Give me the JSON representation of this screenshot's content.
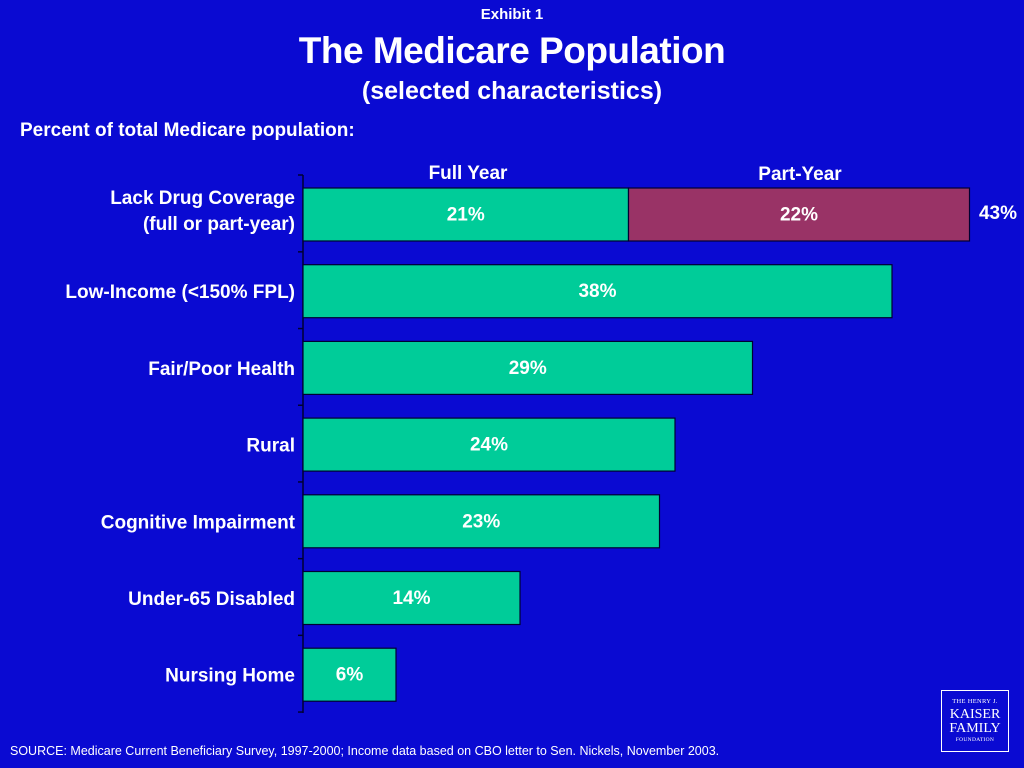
{
  "header": {
    "exhibit": "Exhibit 1",
    "title": "The Medicare Population",
    "subtitle": "(selected characteristics)"
  },
  "chart_data": {
    "type": "bar",
    "orientation": "horizontal",
    "stacked": true,
    "title": "The Medicare Population",
    "subtitle": "(selected characteristics)",
    "ylabel": "Percent of total Medicare population:",
    "categories": [
      [
        "Lack Drug Coverage",
        "(full or part-year)"
      ],
      [
        "Low-Income (<150% FPL)"
      ],
      [
        "Fair/Poor Health"
      ],
      [
        "Rural"
      ],
      [
        "Cognitive Impairment"
      ],
      [
        "Under-65 Disabled"
      ],
      [
        "Nursing Home"
      ]
    ],
    "series": [
      {
        "name": "Full Year",
        "color": "#00cc99",
        "values": [
          21,
          38,
          29,
          24,
          23,
          14,
          6
        ]
      },
      {
        "name": "Part-Year",
        "color": "#993366",
        "values": [
          22,
          null,
          null,
          null,
          null,
          null,
          null
        ]
      }
    ],
    "data_labels": [
      "21%",
      "38%",
      "29%",
      "24%",
      "23%",
      "14%",
      "6%"
    ],
    "part_year_label": "22%",
    "total_labels": [
      "43%",
      null,
      null,
      null,
      null,
      null,
      null
    ],
    "xlim": [
      0,
      43
    ],
    "grid": false,
    "legend": "top"
  },
  "footer": {
    "source": "SOURCE: Medicare Current Beneficiary Survey, 1997-2000; Income data based on CBO letter to Sen. Nickels, November 2003.",
    "logo": {
      "line1": "THE HENRY J.",
      "line2": "KAISER",
      "line3": "FAMILY",
      "line4": "FOUNDATION"
    }
  }
}
